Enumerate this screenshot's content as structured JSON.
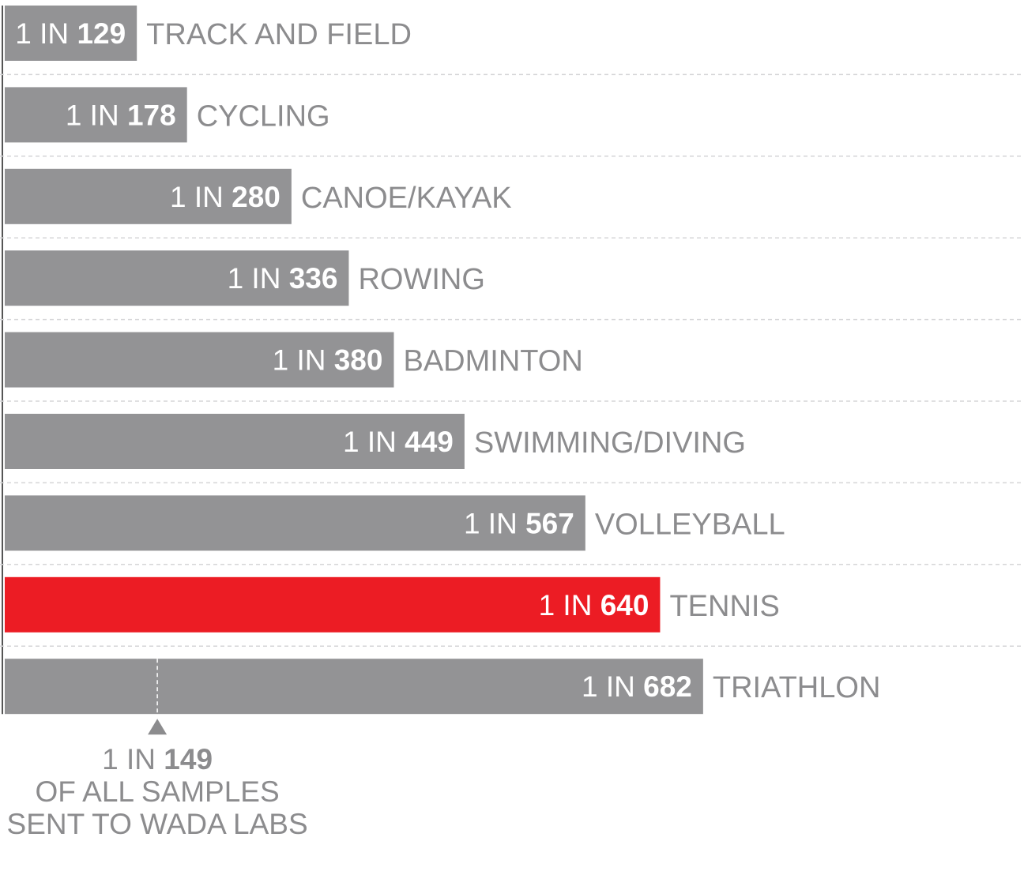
{
  "chart_data": {
    "type": "bar",
    "orientation": "horizontal",
    "title": "",
    "xlabel": "",
    "ylabel": "",
    "value_prefix": "1 IN",
    "categories": [
      "TRACK AND FIELD",
      "CYCLING",
      "CANOE/KAYAK",
      "ROWING",
      "BADMINTON",
      "SWIMMING/DIVING",
      "VOLLEYBALL",
      "TENNIS",
      "TRIATHLON"
    ],
    "values": [
      129,
      178,
      280,
      336,
      380,
      449,
      567,
      640,
      682
    ],
    "highlight": "TENNIS",
    "reference": {
      "value": 149,
      "prefix": "1 IN",
      "label_lines": [
        "OF ALL SAMPLES",
        "SENT TO WADA LABS"
      ]
    },
    "grid": "dashed row separators",
    "legend": "none"
  },
  "colors": {
    "bar": "#939395",
    "highlight": "#ec1c24",
    "bar_text": "#ffffff",
    "category_text": "#8c8c8e",
    "grid": "#d5d5d7",
    "reference_marker": "#8c8c8e"
  }
}
